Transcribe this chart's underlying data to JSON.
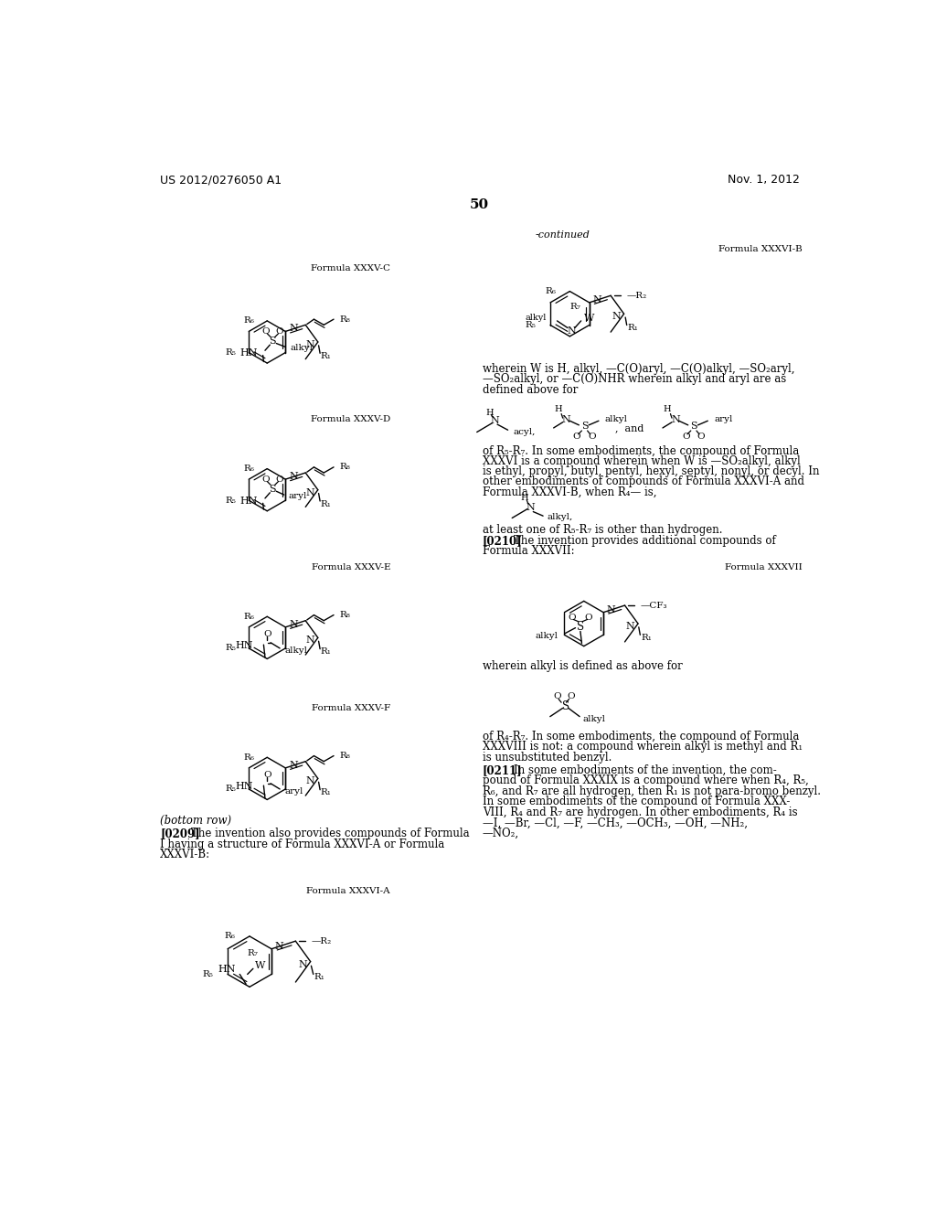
{
  "page_number": "50",
  "patent_number": "US 2012/0276050 A1",
  "date": "Nov. 1, 2012",
  "background_color": "#ffffff"
}
